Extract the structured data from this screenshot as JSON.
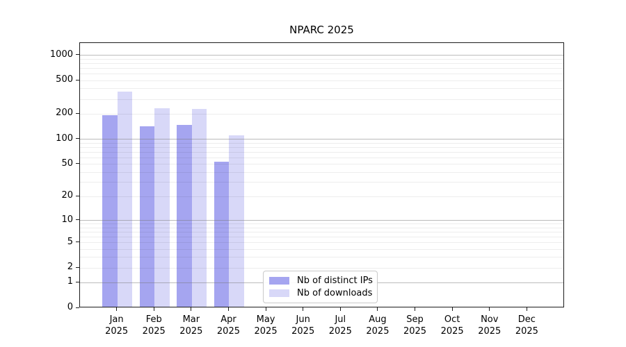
{
  "figure": {
    "background": "#ffffff"
  },
  "chart_data": {
    "type": "bar",
    "title": "NPARC 2025",
    "xlabel": "",
    "ylabel": "",
    "scale": "log1p",
    "ylim": [
      0,
      1400
    ],
    "yticks": [
      1000,
      500,
      200,
      100,
      50,
      20,
      10,
      5,
      2,
      1,
      0
    ],
    "major_gridlines": [
      1,
      10,
      100,
      1000
    ],
    "minor_gridlines": [
      2,
      3,
      4,
      5,
      6,
      7,
      8,
      9,
      20,
      30,
      40,
      50,
      60,
      70,
      80,
      90,
      200,
      300,
      400,
      500,
      600,
      700,
      800,
      900
    ],
    "grid": true,
    "categories": [
      "Jan",
      "Feb",
      "Mar",
      "Apr",
      "May",
      "Jun",
      "Jul",
      "Aug",
      "Sep",
      "Oct",
      "Nov",
      "Dec"
    ],
    "category_year": "2025",
    "series": [
      {
        "name": "Nb of distinct IPs",
        "color": "#a5a5f0",
        "values": [
          185,
          138,
          142,
          52,
          0,
          0,
          0,
          0,
          0,
          0,
          0,
          0
        ]
      },
      {
        "name": "Nb of downloads",
        "color": "#d8d8f8",
        "values": [
          355,
          228,
          222,
          107,
          0,
          0,
          0,
          0,
          0,
          0,
          0,
          0
        ]
      }
    ],
    "legend_position": "lower center"
  }
}
